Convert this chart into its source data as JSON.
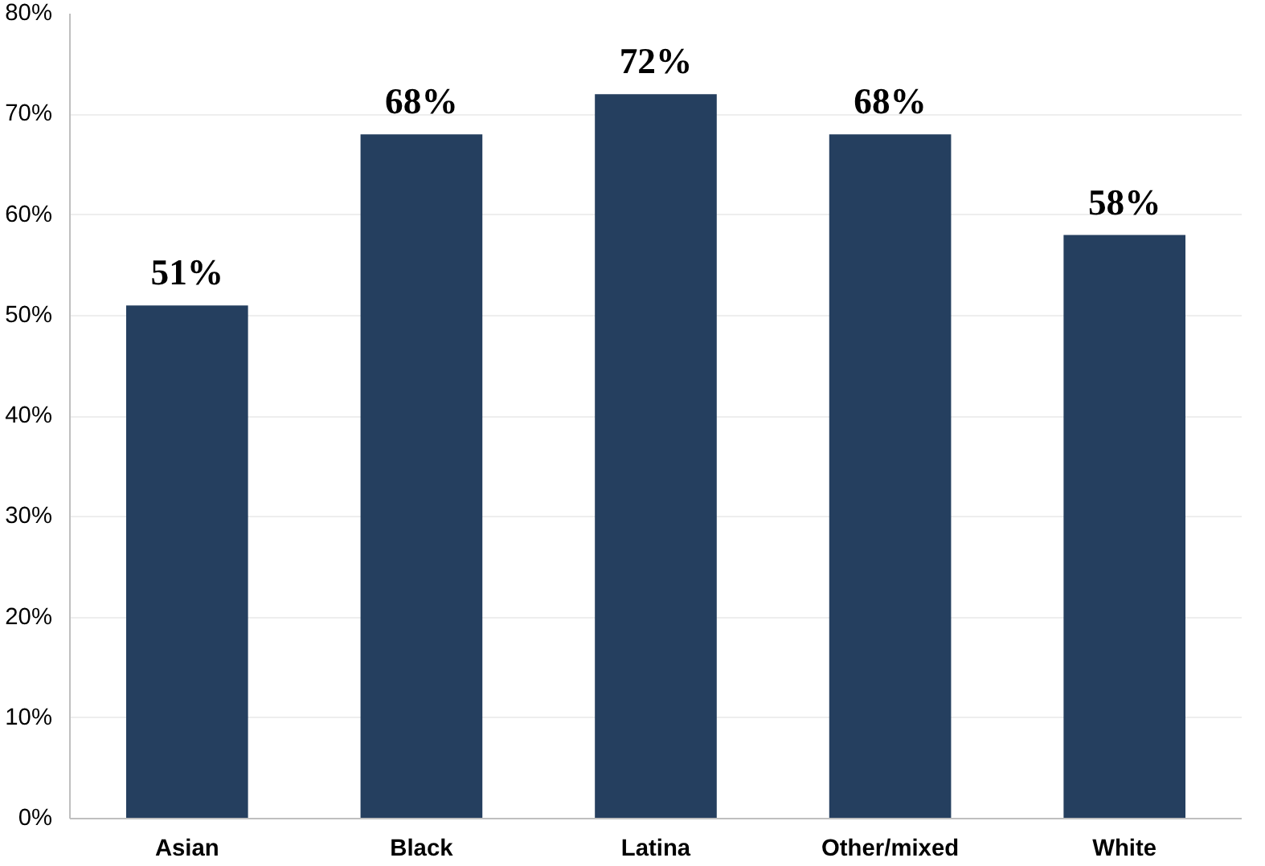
{
  "chart_data": {
    "type": "bar",
    "categories": [
      "Asian",
      "Black",
      "Latina",
      "Other/mixed",
      "White"
    ],
    "values": [
      51,
      68,
      72,
      68,
      58
    ],
    "color": "#253f5f",
    "value_labels": [
      "51%",
      "68%",
      "72%",
      "68%",
      "58%"
    ],
    "ylim": [
      0,
      80
    ],
    "yticks": [
      {
        "value": 0,
        "label": "0%"
      },
      {
        "value": 10,
        "label": "10%"
      },
      {
        "value": 20,
        "label": "20%"
      },
      {
        "value": 30,
        "label": "30%"
      },
      {
        "value": 40,
        "label": "40%"
      },
      {
        "value": 50,
        "label": "50%"
      },
      {
        "value": 60,
        "label": "60%"
      },
      {
        "value": 70,
        "label": "70%"
      },
      {
        "value": 80,
        "label": "80%"
      }
    ],
    "grid": "y"
  }
}
